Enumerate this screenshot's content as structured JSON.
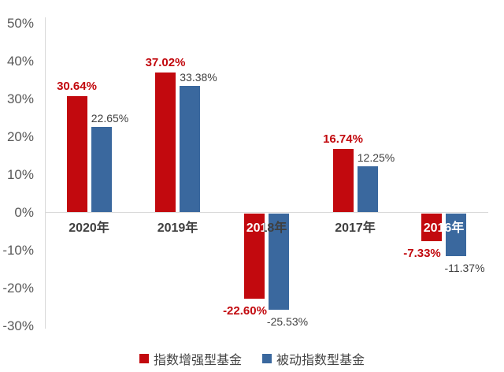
{
  "chart_data": {
    "type": "bar",
    "title": "",
    "xlabel": "",
    "ylabel": "",
    "categories": [
      "2020年",
      "2019年",
      "2018年",
      "2017年",
      "2016年"
    ],
    "series": [
      {
        "name": "指数增强型基金",
        "color": "#c2090e",
        "values": [
          30.64,
          37.02,
          -22.6,
          16.74,
          -7.33
        ],
        "labels": [
          "30.64%",
          "37.02%",
          "-22.60%",
          "16.74%",
          "-7.33%"
        ]
      },
      {
        "name": "被动指数型基金",
        "color": "#3a689e",
        "values": [
          22.65,
          33.38,
          -25.53,
          12.25,
          -11.37
        ],
        "labels": [
          "22.65%",
          "33.38%",
          "-25.53%",
          "12.25%",
          "-11.37%"
        ]
      }
    ],
    "ylim": [
      -30,
      50
    ],
    "ytick_values": [
      50,
      40,
      30,
      20,
      10,
      0,
      -10,
      -20,
      -30
    ],
    "ytick_labels": [
      "50%",
      "40%",
      "30%",
      "20%",
      "10%",
      "0%",
      "-10%",
      "-20%",
      "-30%"
    ],
    "grid": false,
    "legend_position": "bottom",
    "category_label_styles": [
      "dark",
      "dark",
      "split",
      "dark",
      "white"
    ]
  },
  "colors": {
    "red_series": "#c2090e",
    "blue_series": "#3a689e",
    "axis_line": "#d9d9d9",
    "tick_text": "#595959",
    "category_text": "#3f3f3f",
    "value_label_dark": "#404040",
    "background": "#ffffff"
  }
}
